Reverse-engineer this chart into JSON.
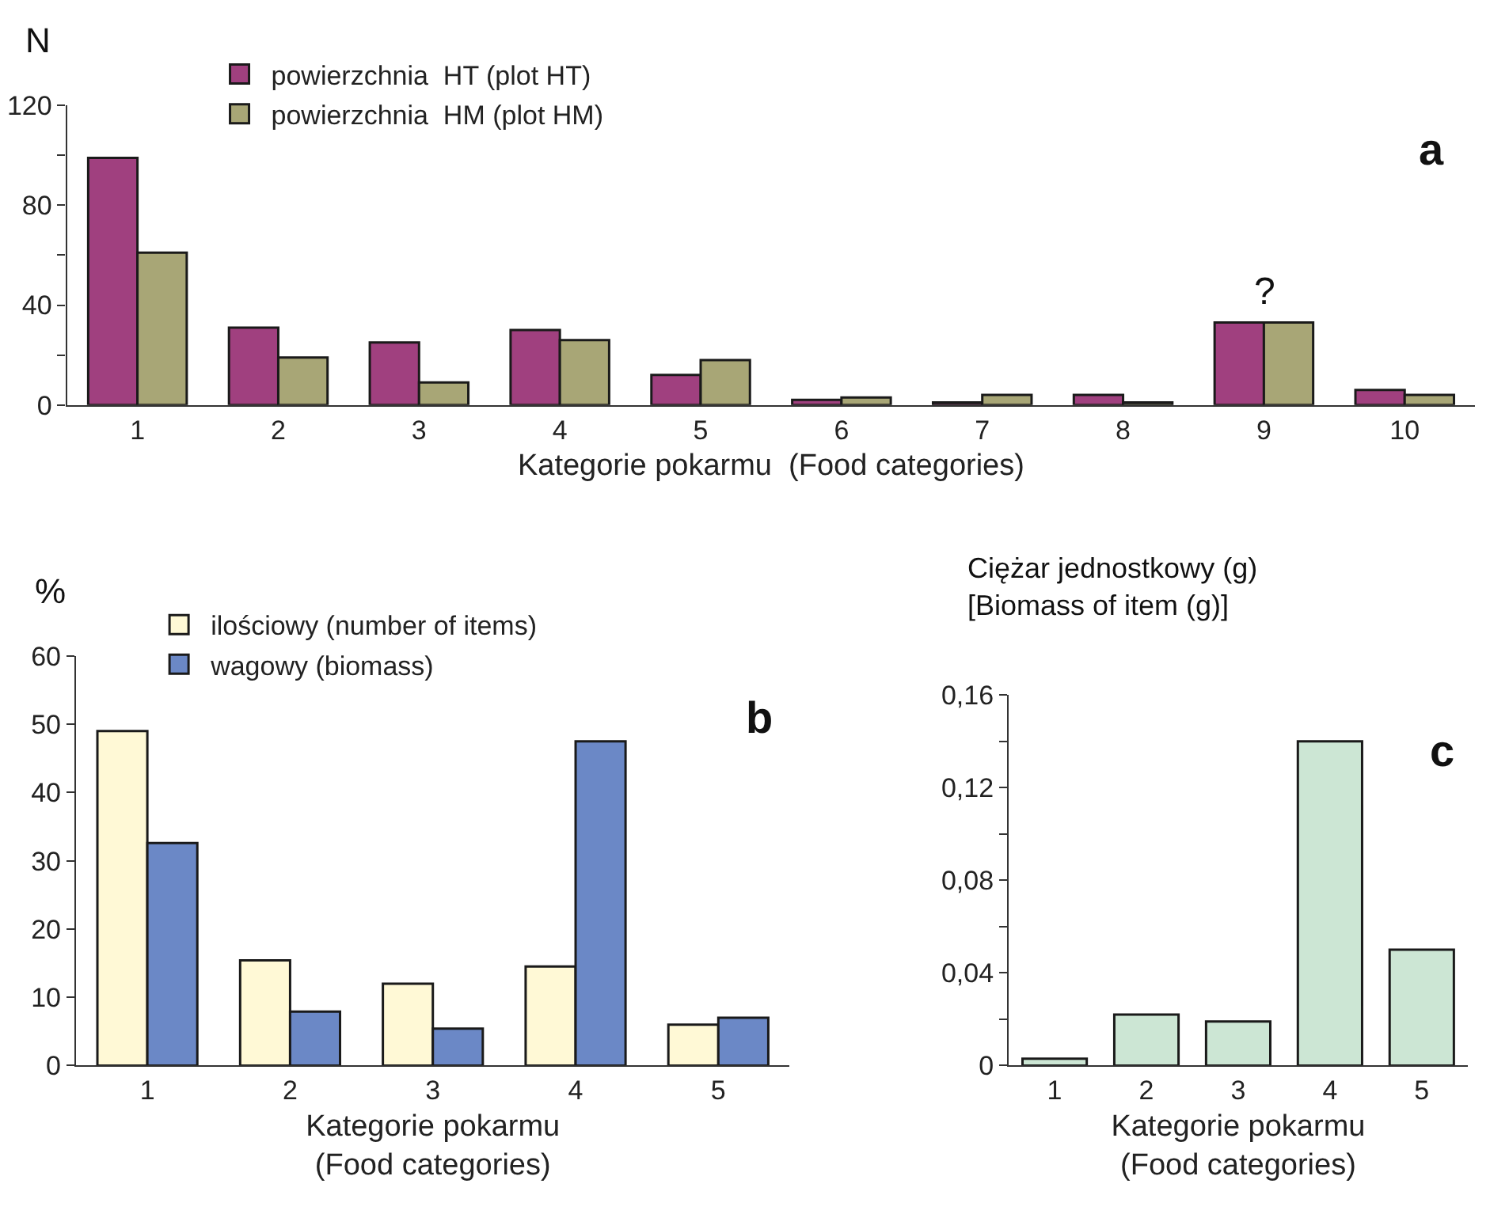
{
  "chart_data": [
    {
      "type": "bar",
      "ylabel": "N",
      "xlabel": "Kategorie pokarmu  (Food categories)",
      "categories": [
        "1",
        "2",
        "3",
        "4",
        "5",
        "6",
        "7",
        "8",
        "9",
        "10"
      ],
      "series": [
        {
          "name": "powierzchnia  HT (plot HT)",
          "color": "#a0407f",
          "values": [
            99,
            31,
            25,
            30,
            12,
            2,
            1,
            4,
            33,
            6
          ]
        },
        {
          "name": "powierzchnia  HM (plot HM)",
          "color": "#a8a676",
          "values": [
            61,
            19,
            9,
            26,
            18,
            3,
            4,
            1,
            33,
            4
          ]
        }
      ],
      "ylim": [
        0,
        120
      ],
      "yticks": [
        0,
        {
          "value": 20,
          "label": null
        },
        40,
        {
          "value": 60,
          "label": null
        },
        80,
        {
          "value": 100,
          "label": null
        },
        120
      ],
      "legend": "top left",
      "annotations": [
        "a",
        {
          "text": "?",
          "x": "9",
          "y": 33
        }
      ]
    },
    {
      "type": "bar",
      "ylabel": "%",
      "xlabel": "Kategorie pokarmu\n(Food categories)",
      "categories": [
        "1",
        "2",
        "3",
        "4",
        "5"
      ],
      "series": [
        {
          "name": "ilościowy (number of items)",
          "color": "#fff9d6",
          "values": [
            49,
            15.4,
            12,
            14.5,
            6
          ]
        },
        {
          "name": "wagowy (biomass)",
          "color": "#6b88c6",
          "values": [
            32.6,
            7.9,
            5.4,
            47.5,
            7
          ]
        }
      ],
      "ylim": [
        0,
        60
      ],
      "yticks": [
        0,
        10,
        20,
        30,
        40,
        50,
        60
      ],
      "legend": "top left",
      "annotations": [
        "b"
      ]
    },
    {
      "type": "bar",
      "ylabel": "Ciężar jednostkowy (g)\n[Biomass of item (g)]",
      "xlabel": "Kategorie pokarmu\n(Food categories)",
      "categories": [
        "1",
        "2",
        "3",
        "4",
        "5"
      ],
      "series": [
        {
          "color": "#cce6d4",
          "values": [
            0.003,
            0.022,
            0.019,
            0.14,
            0.05
          ]
        }
      ],
      "ylim": [
        0,
        0.16
      ],
      "yticks": [
        {
          "value": 0,
          "label": "0"
        },
        {
          "value": 0.02,
          "label": null
        },
        {
          "value": 0.04,
          "label": "0,04"
        },
        {
          "value": 0.06,
          "label": null
        },
        {
          "value": 0.08,
          "label": "0,08"
        },
        {
          "value": 0.1,
          "label": null
        },
        {
          "value": 0.12,
          "label": "0,12"
        },
        {
          "value": 0.14,
          "label": null
        },
        {
          "value": 0.16,
          "label": "0,16"
        }
      ],
      "annotations": [
        "c"
      ]
    }
  ]
}
